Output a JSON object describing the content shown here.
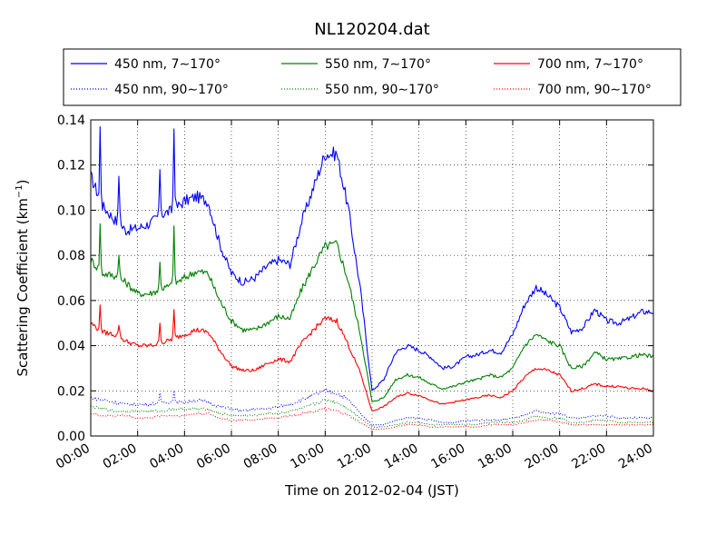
{
  "chart_data": {
    "type": "line",
    "title": "NL120204.dat",
    "xlabel": "Time on 2012-02-04 (JST)",
    "ylabel": "Scattering Coefficient (km",
    "ylabel_sup": "−1",
    "ylabel_suffix": ")",
    "xlim": [
      0,
      24
    ],
    "ylim": [
      0,
      0.14
    ],
    "grid": true,
    "legend": {
      "position": "top",
      "columns": 3
    },
    "x_ticks": [
      0,
      2,
      4,
      6,
      8,
      10,
      12,
      14,
      16,
      18,
      20,
      22,
      24
    ],
    "x_tick_labels": [
      "00:00",
      "02:00",
      "04:00",
      "06:00",
      "08:00",
      "10:00",
      "12:00",
      "14:00",
      "16:00",
      "18:00",
      "20:00",
      "22:00",
      "24:00"
    ],
    "y_ticks": [
      0,
      0.02,
      0.04,
      0.06,
      0.08,
      0.1,
      0.12,
      0.14
    ],
    "y_tick_labels": [
      "0.00",
      "0.02",
      "0.04",
      "0.06",
      "0.08",
      "0.10",
      "0.12",
      "0.14"
    ],
    "x": [
      0,
      0.5,
      1,
      1.5,
      2,
      2.5,
      3,
      3.5,
      4,
      4.5,
      5,
      5.5,
      6,
      6.5,
      7,
      7.5,
      8,
      8.5,
      9,
      9.5,
      10,
      10.5,
      11,
      11.5,
      12,
      12.5,
      13,
      13.5,
      14,
      14.5,
      15,
      15.5,
      16,
      16.5,
      17,
      17.5,
      18,
      18.5,
      19,
      19.5,
      20,
      20.5,
      21,
      21.5,
      22,
      22.5,
      23,
      23.5,
      24
    ],
    "series": [
      {
        "name": "450 nm, 7∼170°",
        "color": "#0000ff",
        "style": "solid",
        "values": [
          0.115,
          0.102,
          0.096,
          0.091,
          0.092,
          0.094,
          0.098,
          0.1,
          0.104,
          0.106,
          0.104,
          0.085,
          0.072,
          0.068,
          0.07,
          0.075,
          0.078,
          0.076,
          0.095,
          0.11,
          0.125,
          0.125,
          0.1,
          0.065,
          0.02,
          0.025,
          0.037,
          0.04,
          0.038,
          0.035,
          0.03,
          0.031,
          0.035,
          0.036,
          0.038,
          0.037,
          0.045,
          0.058,
          0.066,
          0.062,
          0.057,
          0.046,
          0.048,
          0.056,
          0.051,
          0.05,
          0.052,
          0.055,
          0.055
        ],
        "spikes": [
          [
            0.4,
            0.137
          ],
          [
            1.2,
            0.115
          ],
          [
            2.95,
            0.118
          ],
          [
            3.55,
            0.136
          ]
        ]
      },
      {
        "name": "550 nm, 7∼170°",
        "color": "#008000",
        "style": "solid",
        "values": [
          0.078,
          0.072,
          0.071,
          0.068,
          0.063,
          0.063,
          0.065,
          0.067,
          0.07,
          0.073,
          0.072,
          0.06,
          0.051,
          0.047,
          0.047,
          0.05,
          0.053,
          0.052,
          0.065,
          0.075,
          0.084,
          0.085,
          0.068,
          0.045,
          0.015,
          0.017,
          0.025,
          0.027,
          0.026,
          0.023,
          0.021,
          0.022,
          0.024,
          0.025,
          0.027,
          0.026,
          0.03,
          0.04,
          0.045,
          0.042,
          0.04,
          0.03,
          0.031,
          0.037,
          0.034,
          0.034,
          0.035,
          0.036,
          0.035
        ],
        "spikes": [
          [
            0.4,
            0.094
          ],
          [
            1.2,
            0.08
          ],
          [
            2.95,
            0.077
          ],
          [
            3.55,
            0.093
          ]
        ]
      },
      {
        "name": "700 nm, 7∼170°",
        "color": "#ff0000",
        "style": "solid",
        "values": [
          0.05,
          0.046,
          0.045,
          0.042,
          0.04,
          0.04,
          0.041,
          0.043,
          0.045,
          0.047,
          0.046,
          0.038,
          0.031,
          0.029,
          0.029,
          0.032,
          0.034,
          0.033,
          0.041,
          0.047,
          0.052,
          0.051,
          0.04,
          0.028,
          0.011,
          0.013,
          0.017,
          0.019,
          0.018,
          0.016,
          0.014,
          0.015,
          0.016,
          0.017,
          0.018,
          0.017,
          0.02,
          0.026,
          0.03,
          0.029,
          0.027,
          0.02,
          0.021,
          0.023,
          0.022,
          0.022,
          0.021,
          0.021,
          0.02
        ],
        "spikes": [
          [
            0.4,
            0.058
          ],
          [
            1.2,
            0.049
          ],
          [
            2.95,
            0.05
          ],
          [
            3.55,
            0.056
          ]
        ]
      },
      {
        "name": "450 nm, 90∼170°",
        "color": "#0000ff",
        "style": "dotted",
        "values": [
          0.017,
          0.016,
          0.015,
          0.014,
          0.014,
          0.014,
          0.015,
          0.015,
          0.015,
          0.016,
          0.015,
          0.013,
          0.012,
          0.011,
          0.012,
          0.012,
          0.013,
          0.014,
          0.016,
          0.018,
          0.02,
          0.019,
          0.016,
          0.01,
          0.005,
          0.005,
          0.007,
          0.008,
          0.008,
          0.007,
          0.006,
          0.006,
          0.007,
          0.007,
          0.007,
          0.007,
          0.008,
          0.009,
          0.011,
          0.01,
          0.01,
          0.008,
          0.008,
          0.009,
          0.009,
          0.008,
          0.008,
          0.008,
          0.008
        ],
        "spikes": [
          [
            2.95,
            0.019
          ],
          [
            3.55,
            0.02
          ]
        ]
      },
      {
        "name": "550 nm, 90∼170°",
        "color": "#008000",
        "style": "dotted",
        "values": [
          0.013,
          0.012,
          0.011,
          0.011,
          0.011,
          0.011,
          0.011,
          0.012,
          0.012,
          0.012,
          0.012,
          0.01,
          0.009,
          0.009,
          0.009,
          0.01,
          0.01,
          0.011,
          0.012,
          0.014,
          0.016,
          0.015,
          0.012,
          0.008,
          0.004,
          0.004,
          0.005,
          0.006,
          0.006,
          0.005,
          0.005,
          0.005,
          0.005,
          0.005,
          0.006,
          0.006,
          0.006,
          0.007,
          0.009,
          0.008,
          0.008,
          0.006,
          0.006,
          0.007,
          0.007,
          0.006,
          0.006,
          0.006,
          0.006
        ],
        "spikes": []
      },
      {
        "name": "700 nm, 90∼170°",
        "color": "#ff0000",
        "style": "dotted",
        "values": [
          0.01,
          0.009,
          0.009,
          0.009,
          0.008,
          0.008,
          0.009,
          0.009,
          0.009,
          0.01,
          0.01,
          0.008,
          0.007,
          0.007,
          0.007,
          0.008,
          0.008,
          0.009,
          0.01,
          0.011,
          0.012,
          0.011,
          0.009,
          0.006,
          0.003,
          0.003,
          0.004,
          0.005,
          0.005,
          0.004,
          0.004,
          0.004,
          0.004,
          0.004,
          0.005,
          0.005,
          0.005,
          0.006,
          0.007,
          0.007,
          0.006,
          0.005,
          0.005,
          0.005,
          0.005,
          0.005,
          0.005,
          0.005,
          0.005
        ],
        "spikes": []
      }
    ]
  }
}
